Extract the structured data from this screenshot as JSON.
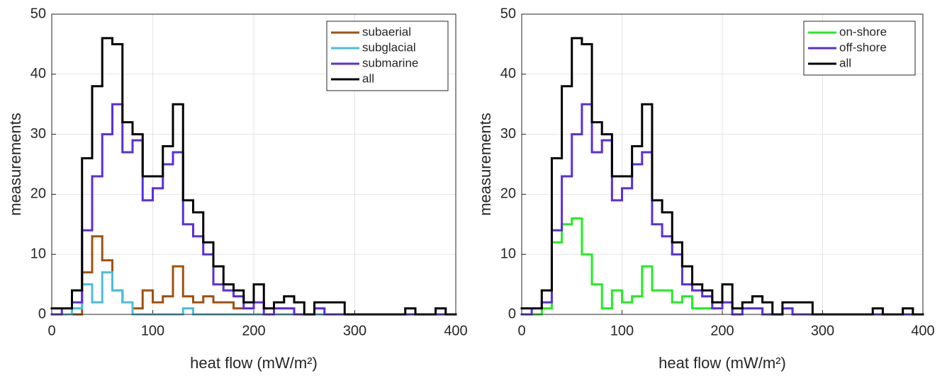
{
  "chart_data": [
    {
      "type": "histogram",
      "x_label": "heat flow (mW/m²)",
      "y_label": "measurements",
      "bins": [
        0,
        10,
        20,
        30,
        40,
        50,
        60,
        70,
        80,
        90,
        100,
        110,
        120,
        130,
        140,
        150,
        160,
        170,
        180,
        190,
        200,
        210,
        220,
        230,
        240,
        250,
        260,
        270,
        280,
        290,
        300,
        310,
        320,
        330,
        340,
        350,
        360,
        370,
        380,
        390,
        400
      ],
      "xlim": [
        0,
        400
      ],
      "xticks": [
        0,
        100,
        200,
        300,
        400
      ],
      "ylim": [
        0,
        50
      ],
      "yticks": [
        0,
        10,
        20,
        30,
        40,
        50
      ],
      "grid": true,
      "legend": "upper right",
      "series": [
        {
          "name": "subaerial",
          "color": "#a0520f",
          "values": [
            0,
            0,
            0,
            7,
            13,
            9,
            4,
            2,
            1,
            4,
            2,
            3,
            8,
            3,
            2,
            3,
            2,
            2,
            1,
            1,
            2,
            1,
            1,
            1,
            0,
            0,
            0,
            0,
            0,
            0,
            0,
            0,
            0,
            0,
            0,
            0,
            0,
            0,
            0,
            0
          ]
        },
        {
          "name": "subglacial",
          "color": "#4bbfd6",
          "values": [
            0,
            0,
            1,
            5,
            2,
            7,
            4,
            2,
            0,
            0,
            0,
            0,
            0,
            1,
            0,
            0,
            0,
            0,
            0,
            0,
            0,
            0,
            0,
            0,
            0,
            0,
            0,
            0,
            0,
            0,
            0,
            0,
            0,
            0,
            0,
            0,
            0,
            0,
            0,
            0
          ]
        },
        {
          "name": "submarine",
          "color": "#5a2ee0",
          "values": [
            0,
            1,
            2,
            14,
            23,
            30,
            35,
            27,
            29,
            19,
            21,
            25,
            27,
            15,
            13,
            10,
            5,
            4,
            3,
            1,
            2,
            0,
            1,
            1,
            0,
            0,
            1,
            0,
            0,
            0,
            0,
            0,
            0,
            0,
            0,
            0,
            0,
            0,
            0,
            0
          ]
        },
        {
          "name": "all",
          "color": "#000000",
          "values": [
            1,
            1,
            4,
            26,
            38,
            46,
            45,
            32,
            30,
            23,
            23,
            28,
            35,
            19,
            17,
            12,
            8,
            5,
            4,
            2,
            5,
            1,
            2,
            3,
            2,
            0,
            2,
            2,
            2,
            0,
            0,
            0,
            0,
            0,
            0,
            1,
            0,
            0,
            1,
            0
          ]
        }
      ]
    },
    {
      "type": "histogram",
      "x_label": "heat flow (mW/m²)",
      "y_label": "measurements",
      "bins": [
        0,
        10,
        20,
        30,
        40,
        50,
        60,
        70,
        80,
        90,
        100,
        110,
        120,
        130,
        140,
        150,
        160,
        170,
        180,
        190,
        200,
        210,
        220,
        230,
        240,
        250,
        260,
        270,
        280,
        290,
        300,
        310,
        320,
        330,
        340,
        350,
        360,
        370,
        380,
        390,
        400
      ],
      "xlim": [
        0,
        400
      ],
      "xticks": [
        0,
        100,
        200,
        300,
        400
      ],
      "ylim": [
        0,
        50
      ],
      "yticks": [
        0,
        10,
        20,
        30,
        40,
        50
      ],
      "grid": true,
      "legend": "upper right",
      "series": [
        {
          "name": "on-shore",
          "color": "#22ee22",
          "values": [
            0,
            0,
            1,
            12,
            15,
            16,
            10,
            5,
            1,
            4,
            2,
            3,
            8,
            4,
            4,
            2,
            3,
            1,
            1,
            1,
            2,
            0,
            1,
            1,
            0,
            0,
            1,
            0,
            0,
            0,
            0,
            0,
            0,
            0,
            0,
            0,
            0,
            0,
            0,
            0
          ]
        },
        {
          "name": "off-shore",
          "color": "#5a2ee0",
          "values": [
            0,
            1,
            2,
            14,
            23,
            30,
            35,
            27,
            29,
            19,
            21,
            25,
            27,
            15,
            13,
            10,
            5,
            4,
            3,
            1,
            2,
            0,
            1,
            1,
            0,
            0,
            1,
            0,
            0,
            0,
            0,
            0,
            0,
            0,
            0,
            0,
            0,
            0,
            0,
            0
          ]
        },
        {
          "name": "all",
          "color": "#000000",
          "values": [
            1,
            1,
            4,
            26,
            38,
            46,
            45,
            32,
            30,
            23,
            23,
            28,
            35,
            19,
            17,
            12,
            8,
            5,
            4,
            2,
            5,
            1,
            2,
            3,
            2,
            0,
            2,
            2,
            2,
            0,
            0,
            0,
            0,
            0,
            0,
            1,
            0,
            0,
            1,
            0
          ]
        }
      ]
    }
  ]
}
